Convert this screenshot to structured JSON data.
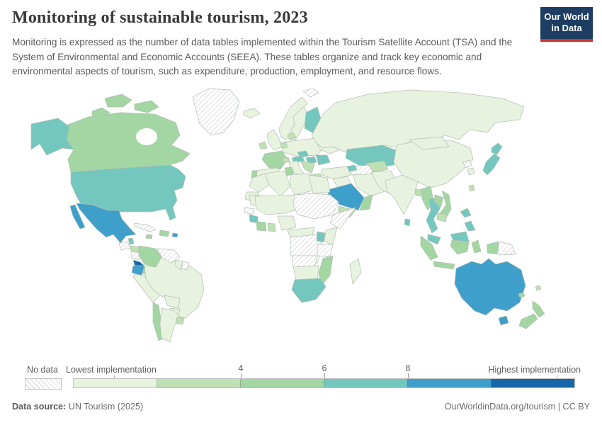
{
  "header": {
    "title": "Monitoring of sustainable tourism, 2023",
    "subtitle": "Monitoring is expressed as the number of data tables implemented within the Tourism Satellite Account (TSA) and the System of Environmental and Economic Accounts (SEEA). These tables organize and track key economic and environmental aspects of tourism, such as expenditure, production, employment, and resource flows.",
    "logo": {
      "line1": "Our World",
      "line2": "in Data",
      "bg_color": "#1d3d63",
      "accent_color": "#d0342c"
    }
  },
  "legend": {
    "no_data_label": "No data",
    "min_label": "Lowest implementation",
    "max_label": "Highest implementation",
    "ticks": [
      "4",
      "6",
      "8"
    ],
    "bins": [
      {
        "label": "1",
        "color": "#e7f3df"
      },
      {
        "label": "2",
        "color": "#bee0b2"
      },
      {
        "label": "3",
        "color": "#a3d6a2"
      },
      {
        "label": "4",
        "color": "#73c7be"
      },
      {
        "label": "5",
        "color": "#3f9fcb"
      },
      {
        "label": "6",
        "color": "#1566ab"
      }
    ]
  },
  "footer": {
    "source_label": "Data source:",
    "source_value": " UN Tourism (2025)",
    "credit": "OurWorldinData.org/tourism | CC BY"
  },
  "map": {
    "palette": {
      "1": "#e7f3df",
      "2": "#bee0b2",
      "3": "#a3d6a2",
      "4": "#73c7be",
      "5": "#3f9fcb",
      "6": "#1566ab"
    },
    "regions": {
      "greenland": "nodata",
      "canada_arctic_a": "3",
      "canada_arctic_b": "3",
      "canada_arctic_c": "3",
      "canada": "3",
      "alaska": "4",
      "usa": "4",
      "baja": "5",
      "mexico": "5",
      "guatemala": "nodata",
      "belize": "4",
      "honduras": "2",
      "nicaragua": "nodata",
      "costa_rica": "6",
      "panama": "3",
      "cuba": "nodata",
      "jamaica": "3",
      "hispaniola": "3",
      "puerto_rico": "5",
      "colombia": "3",
      "venezuela": "nodata",
      "guyana": "1",
      "suriname": "nodata",
      "ecuador": "5",
      "peru": "1",
      "brazil": "1",
      "bolivia": "1",
      "paraguay": "1",
      "chile": "3",
      "argentina": "1",
      "uruguay": "2",
      "iceland": "1",
      "uk": "1",
      "ireland": "2",
      "norway": "1",
      "sweden": "1",
      "finland": "4",
      "baltics": "4",
      "denmark": "2",
      "central_europe": "1",
      "netherlands": "2",
      "france": "3",
      "switzerland": "2",
      "czechia": "4",
      "austria": "4",
      "hungary": "4",
      "romania": "4",
      "spain": "1",
      "portugal": "3",
      "italy": "1",
      "balkans": "2",
      "greece": "2",
      "ukraine": "1",
      "russia": "1",
      "svalbard": "nodata",
      "kazakhstan": "4",
      "uzbekistan": "2",
      "turkmenistan": "nodata",
      "turkey": "1",
      "azerbaijan": "4",
      "iraq": "1",
      "iran": "1",
      "saudi_arabia": "5",
      "oman": "3",
      "yemen": "2",
      "afghanistan_pakistan": "1",
      "india": "1",
      "sri_lanka": "4",
      "bangladesh": "2",
      "china": "1",
      "mongolia": "1",
      "north_korea": "nodata",
      "south_korea": "1",
      "japan": "4",
      "taiwan": "2",
      "myanmar": "3",
      "thailand": "4",
      "laos": "3",
      "vietnam": "3",
      "cambodia": "2",
      "malaysia": "4",
      "sumatra": "3",
      "java": "3",
      "borneo_malaysia": "4",
      "borneo_indonesia": "3",
      "sulawesi": "3",
      "west_papua": "3",
      "papua_new_guinea": "nodata",
      "philippines": "4",
      "australia": "5",
      "tasmania": "5",
      "new_zealand_north": "3",
      "new_zealand_south": "3",
      "new_caledonia": "3",
      "fiji": "2",
      "morocco": "1",
      "western_sahara": "1",
      "algeria": "1",
      "tunisia": "3",
      "libya": "1",
      "egypt": "1",
      "mauritania": "1",
      "senegal": "nodata",
      "guinea": "4",
      "mali_niger": "1",
      "ivory_coast": "3",
      "ghana": "2",
      "nigeria": "1",
      "chad_sudan": "nodata",
      "horn_of_africa": "nodata",
      "cameroon_car": "1",
      "dr_congo": "nodata",
      "kenya": "1",
      "uganda": "4",
      "tanzania": "nodata",
      "angola_zambia": "nodata",
      "mozambique": "3",
      "southern_africa_interior": "1",
      "south_africa": "4",
      "madagascar": "1"
    }
  },
  "chart_data": {
    "type": "choropleth_map",
    "title": "Monitoring of sustainable tourism, 2023",
    "metric": "Number of data tables implemented within the Tourism Satellite Account (TSA) and the System of Environmental and Economic Accounts (SEEA)",
    "legend": {
      "no_data": "No data",
      "min_label": "Lowest implementation",
      "max_label": "Highest implementation",
      "tick_labels_shown": [
        "4",
        "6",
        "8"
      ],
      "bin_colors": [
        "#e7f3df",
        "#bee0b2",
        "#a3d6a2",
        "#73c7be",
        "#3f9fcb",
        "#1566ab"
      ],
      "scale_note": "6 equal bins; ticks 4, 6 and 8 sit at the 2nd, 3rd and 4th bin boundaries"
    },
    "countries_by_level": {
      "level_6_highest": [
        "Costa Rica"
      ],
      "level_5": [
        "Mexico",
        "Ecuador",
        "Saudi Arabia",
        "Australia",
        "Puerto Rico"
      ],
      "level_4": [
        "United States",
        "Finland",
        "Czechia",
        "Austria",
        "Hungary",
        "Romania",
        "Latvia",
        "Kazakhstan",
        "Azerbaijan",
        "Japan",
        "Thailand",
        "Philippines",
        "Malaysia",
        "Sri Lanka",
        "South Africa",
        "Uganda",
        "Belize",
        "Guinea"
      ],
      "level_3": [
        "Canada",
        "France",
        "Portugal",
        "Tunisia",
        "Colombia",
        "Chile",
        "Panama",
        "Jamaica",
        "Dominican Republic",
        "Oman",
        "Myanmar",
        "Laos",
        "Vietnam",
        "Indonesia",
        "New Zealand",
        "Mozambique",
        "Ivory Coast"
      ],
      "level_2": [
        "Ireland",
        "Denmark",
        "Netherlands",
        "Switzerland",
        "Croatia",
        "Greece",
        "Uruguay",
        "Honduras",
        "Yemen",
        "Uzbekistan",
        "Bangladesh",
        "Cambodia",
        "Taiwan",
        "Ghana",
        "Fiji"
      ],
      "level_1_lowest": [
        "Brazil",
        "Argentina",
        "Peru",
        "Bolivia",
        "Paraguay",
        "Guyana",
        "Russia",
        "China",
        "Mongolia",
        "India",
        "Pakistan",
        "Iran",
        "Iraq",
        "Turkey",
        "Spain",
        "Italy",
        "Germany",
        "Poland",
        "United Kingdom",
        "Norway",
        "Sweden",
        "Iceland",
        "Ukraine",
        "Morocco",
        "Algeria",
        "Libya",
        "Egypt",
        "Mauritania",
        "Mali",
        "Niger",
        "Nigeria",
        "Kenya",
        "Madagascar",
        "Namibia",
        "Botswana",
        "South Korea"
      ],
      "no_data": [
        "Greenland",
        "Guatemala",
        "Nicaragua",
        "Cuba",
        "Venezuela",
        "Suriname",
        "Senegal",
        "Chad",
        "Sudan",
        "Ethiopia",
        "Somalia",
        "Democratic Republic of Congo",
        "Angola",
        "Zambia",
        "Tanzania",
        "Turkmenistan",
        "North Korea",
        "Papua New Guinea",
        "Svalbard"
      ]
    }
  }
}
